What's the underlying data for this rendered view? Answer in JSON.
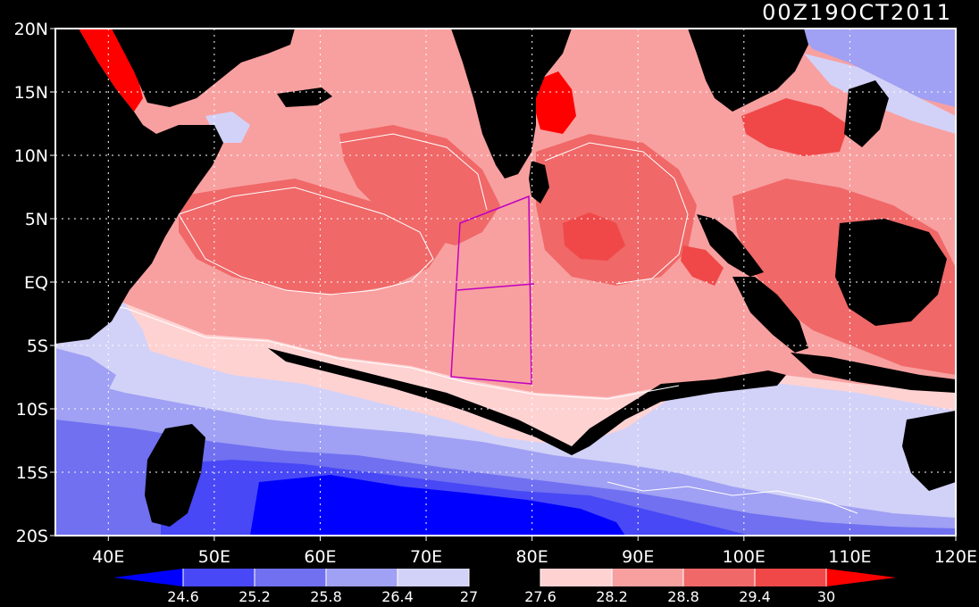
{
  "title": "00Z19OCT2011",
  "map": {
    "lon_min": 35,
    "lon_max": 120,
    "lat_min": -20,
    "lat_max": 20,
    "lat_ticks": [
      {
        "value": 20,
        "label": "20N"
      },
      {
        "value": 15,
        "label": "15N"
      },
      {
        "value": 10,
        "label": "10N"
      },
      {
        "value": 5,
        "label": "5N"
      },
      {
        "value": 0,
        "label": "EQ"
      },
      {
        "value": -5,
        "label": "5S"
      },
      {
        "value": -10,
        "label": "10S"
      },
      {
        "value": -15,
        "label": "15S"
      },
      {
        "value": -20,
        "label": "20S"
      }
    ],
    "lon_ticks": [
      {
        "value": 40,
        "label": "40E"
      },
      {
        "value": 50,
        "label": "50E"
      },
      {
        "value": 60,
        "label": "60E"
      },
      {
        "value": 70,
        "label": "70E"
      },
      {
        "value": 80,
        "label": "80E"
      },
      {
        "value": 90,
        "label": "90E"
      },
      {
        "value": 100,
        "label": "100E"
      },
      {
        "value": 110,
        "label": "110E"
      },
      {
        "value": 120,
        "label": "120E"
      }
    ],
    "grid": true,
    "grid_style": "dotted"
  },
  "colorbar": {
    "levels": [
      "24.6",
      "25.2",
      "25.8",
      "26.4",
      "27",
      "27.6",
      "28.2",
      "28.8",
      "29.4",
      "30"
    ],
    "colors": [
      "#0000ff",
      "#4848f6",
      "#7070f0",
      "#a0a0f4",
      "#d2d2f8",
      "#000000",
      "#ffd2d2",
      "#f8a0a0",
      "#f06868",
      "#f04848",
      "#ff0000"
    ],
    "arrows": "both"
  },
  "colors": {
    "land": "#000000",
    "warm_pool": "#f06868",
    "boundary_box": "#c000c0",
    "contour_lines": "#ffffff"
  }
}
